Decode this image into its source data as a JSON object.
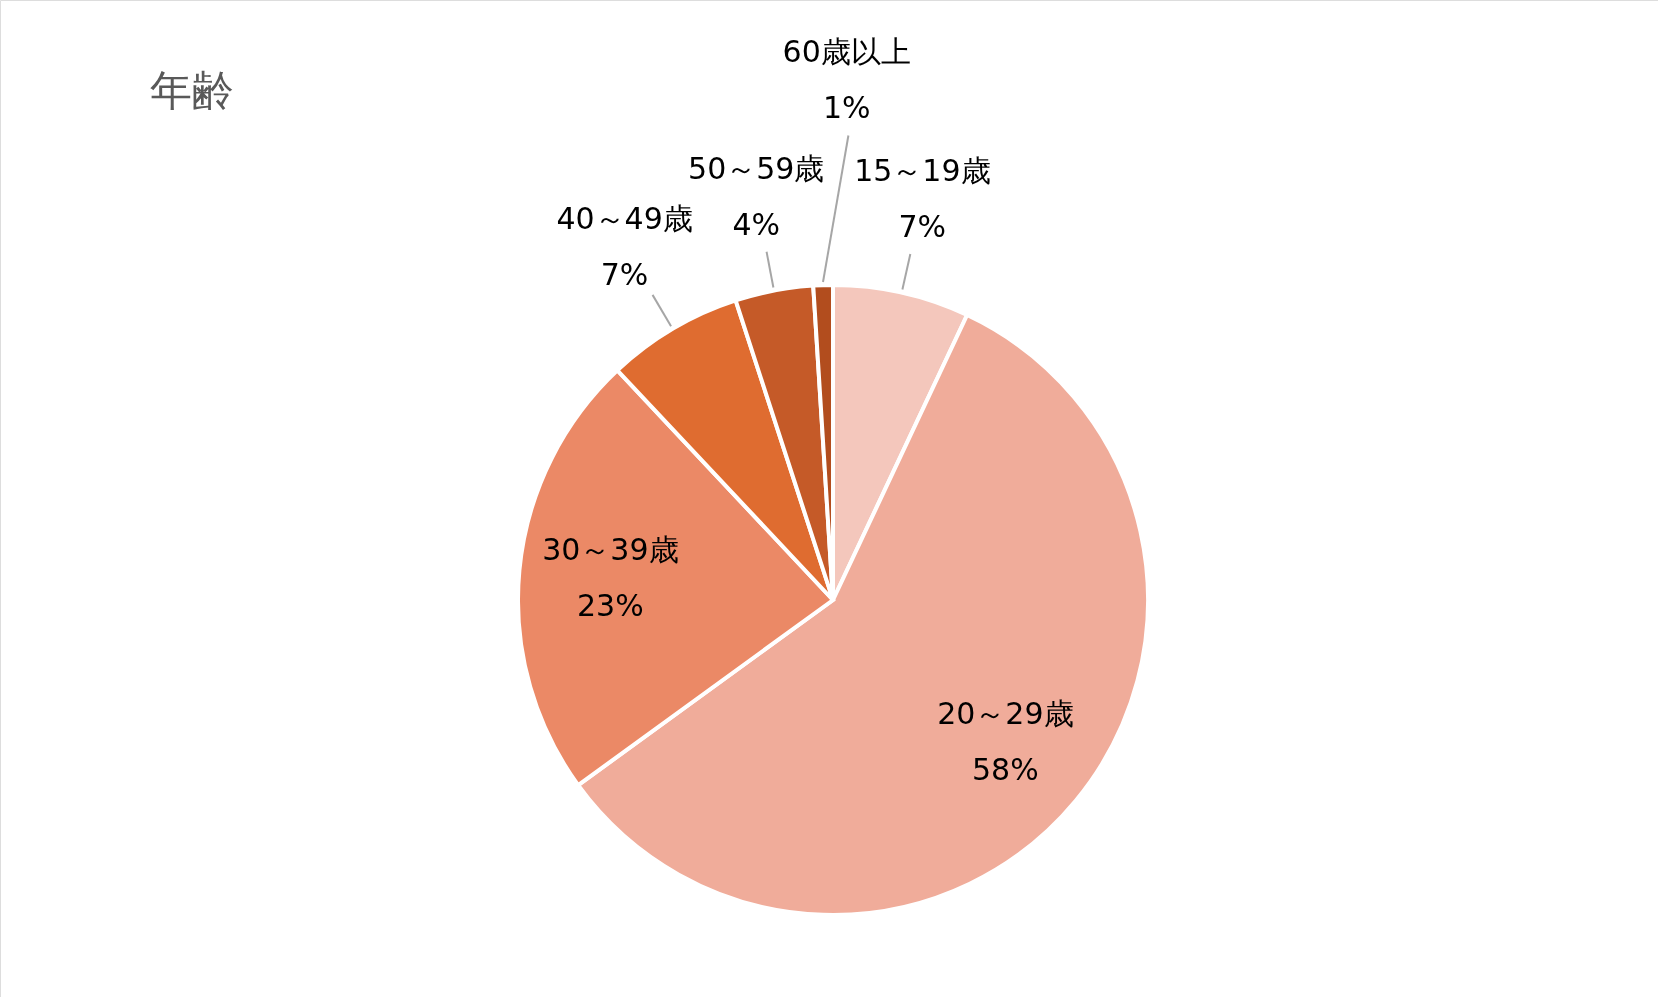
{
  "chart_data": {
    "type": "pie",
    "title": "年齢",
    "categories": [
      "15～19歳",
      "20～29歳",
      "30～39歳",
      "40～49歳",
      "50～59歳",
      "60歳以上"
    ],
    "values": [
      7,
      58,
      23,
      7,
      4,
      1
    ],
    "colors": [
      "#f4c7bc",
      "#f0ac9a",
      "#eb8966",
      "#df6c30",
      "#c55a28",
      "#b24d1e"
    ],
    "value_labels": [
      "7%",
      "58%",
      "23%",
      "7%",
      "4%",
      "1%"
    ]
  }
}
